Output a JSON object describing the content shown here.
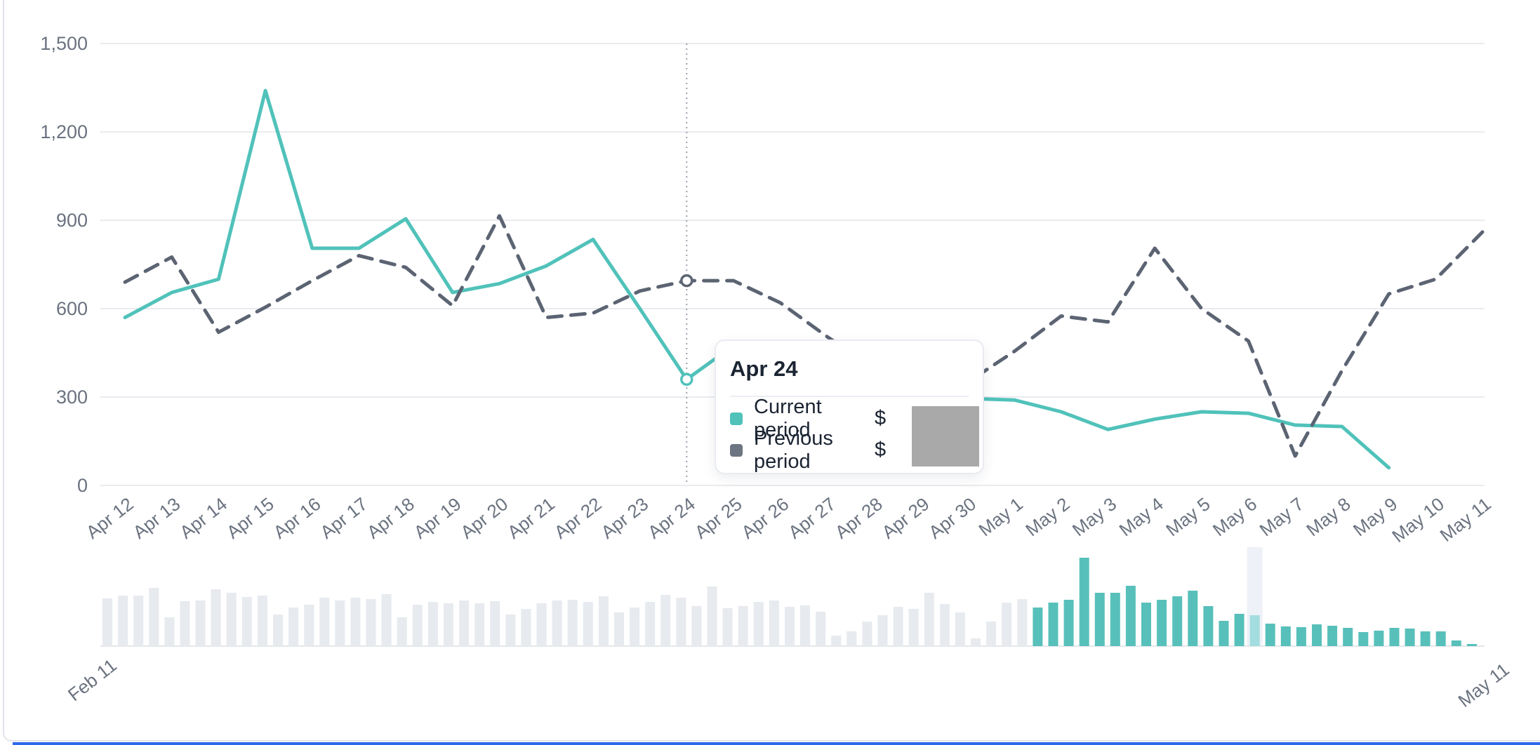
{
  "page": {
    "card_border_color": "#e1e4e9",
    "bottom_strip_color": "#2f68ec",
    "background": "#ffffff"
  },
  "chart_data": {
    "type": "line",
    "title": "",
    "xlabel": "",
    "ylabel": "",
    "grid": "horizontal",
    "ylim": [
      0,
      1500
    ],
    "yticks": [
      0,
      300,
      600,
      900,
      1200,
      1500
    ],
    "ytick_labels": [
      "0",
      "300",
      "600",
      "900",
      "1,200",
      "1,500"
    ],
    "x": [
      "Apr 12",
      "Apr 13",
      "Apr 14",
      "Apr 15",
      "Apr 16",
      "Apr 17",
      "Apr 18",
      "Apr 19",
      "Apr 20",
      "Apr 21",
      "Apr 22",
      "Apr 23",
      "Apr 24",
      "Apr 25",
      "Apr 26",
      "Apr 27",
      "Apr 28",
      "Apr 29",
      "Apr 30",
      "May 1",
      "May 2",
      "May 3",
      "May 4",
      "May 5",
      "May 6",
      "May 7",
      "May 8",
      "May 9",
      "May 10",
      "May 11"
    ],
    "series": [
      {
        "name": "Current period",
        "style": "solid",
        "color": "#50c2ba",
        "values": [
          570,
          655,
          700,
          1340,
          805,
          805,
          905,
          655,
          685,
          745,
          835,
          600,
          360,
          475,
          420,
          370,
          330,
          305,
          295,
          290,
          250,
          190,
          225,
          250,
          245,
          205,
          200,
          60,
          null,
          null
        ]
      },
      {
        "name": "Previous period",
        "style": "dashed",
        "color": "#5c6473",
        "values": [
          690,
          775,
          520,
          605,
          695,
          780,
          740,
          610,
          915,
          570,
          585,
          660,
          695,
          695,
          620,
          505,
          400,
          345,
          350,
          455,
          575,
          555,
          805,
          600,
          490,
          100,
          390,
          650,
          700,
          860
        ]
      }
    ],
    "hover_index": 12,
    "hover_label": "Apr 24",
    "hover_line_color": "#9aa1ab",
    "grid_color": "#e9ebef"
  },
  "tooltip": {
    "title": "Apr 24",
    "rows": [
      {
        "label": "Current period",
        "swatch_color": "#50c2ba",
        "value": "$"
      },
      {
        "label": "Previous period",
        "swatch_color": "#6d7582",
        "value": "$"
      }
    ],
    "redaction_color": "#a9a9a9"
  },
  "mini_chart": {
    "type": "bar",
    "start_label": "Feb 11",
    "end_label": "May 11",
    "bar_color_unselected": "#e7eaee",
    "bar_color_selected": "#58c0ba",
    "highlight_bar_color": "#a3dde0",
    "highlight_column_color": "#eef1f8",
    "baseline_color": "#e4e7ea",
    "selected_start_index": 60,
    "highlight_index": 74,
    "heights": [
      68,
      72,
      72,
      83,
      41,
      64,
      65,
      81,
      76,
      70,
      72,
      45,
      55,
      59,
      69,
      65,
      69,
      67,
      74,
      41,
      59,
      63,
      61,
      65,
      61,
      64,
      45,
      53,
      61,
      65,
      66,
      63,
      71,
      48,
      55,
      63,
      73,
      69,
      57,
      85,
      54,
      57,
      63,
      65,
      56,
      58,
      49,
      15,
      21,
      35,
      44,
      56,
      53,
      76,
      60,
      48,
      11,
      35,
      62,
      67,
      55,
      62,
      66,
      126,
      76,
      76,
      86,
      62,
      66,
      71,
      79,
      57,
      36,
      46,
      44,
      32,
      28,
      27,
      31,
      29,
      26,
      20,
      22,
      26,
      25,
      21,
      21,
      8,
      3,
      0
    ]
  }
}
